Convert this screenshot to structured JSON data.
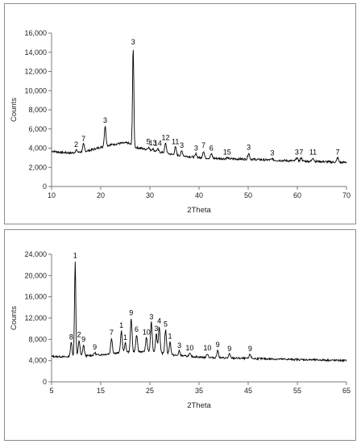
{
  "chart_data": [
    {
      "type": "line",
      "xlabel": "2Theta",
      "ylabel": "Counts",
      "xlim": [
        10,
        70
      ],
      "ylim": [
        0,
        16000
      ],
      "xticks": [
        "10",
        "20",
        "30",
        "40",
        "50",
        "60",
        "70"
      ],
      "yticks": [
        "0",
        "2,000",
        "4,000",
        "6,000",
        "8,000",
        "10,000",
        "12,000",
        "14,000",
        "16,000"
      ],
      "baseline": [
        [
          10,
          3700
        ],
        [
          12,
          3550
        ],
        [
          14,
          3500
        ],
        [
          16,
          3600
        ],
        [
          18,
          3800
        ],
        [
          20,
          4100
        ],
        [
          22,
          4350
        ],
        [
          24,
          4500
        ],
        [
          25.5,
          4550
        ],
        [
          27,
          4100
        ],
        [
          29,
          3900
        ],
        [
          32,
          3600
        ],
        [
          35,
          3300
        ],
        [
          40,
          3000
        ],
        [
          45,
          2900
        ],
        [
          50,
          2850
        ],
        [
          55,
          2750
        ],
        [
          60,
          2650
        ],
        [
          65,
          2600
        ],
        [
          69,
          2500
        ],
        [
          70,
          2550
        ]
      ],
      "peaks": [
        {
          "x": 15.0,
          "y": 3800,
          "label": "2"
        },
        {
          "x": 16.5,
          "y": 4400,
          "label": "7"
        },
        {
          "x": 20.9,
          "y": 6300,
          "label": "3"
        },
        {
          "x": 26.6,
          "y": 14500,
          "label": "3"
        },
        {
          "x": 29.7,
          "y": 4100,
          "label": "5"
        },
        {
          "x": 30.6,
          "y": 3950,
          "label": "13"
        },
        {
          "x": 31.6,
          "y": 3900,
          "label": "14"
        },
        {
          "x": 33.2,
          "y": 4500,
          "label": "12"
        },
        {
          "x": 35.2,
          "y": 4100,
          "label": "11"
        },
        {
          "x": 36.5,
          "y": 3700,
          "label": "3"
        },
        {
          "x": 39.4,
          "y": 3400,
          "label": "3"
        },
        {
          "x": 40.9,
          "y": 3700,
          "label": "7"
        },
        {
          "x": 42.5,
          "y": 3400,
          "label": "6"
        },
        {
          "x": 45.7,
          "y": 3000,
          "label": "15"
        },
        {
          "x": 50.1,
          "y": 3500,
          "label": "3"
        },
        {
          "x": 54.9,
          "y": 2900,
          "label": "3"
        },
        {
          "x": 59.9,
          "y": 3000,
          "label": "3"
        },
        {
          "x": 60.8,
          "y": 3000,
          "label": "7"
        },
        {
          "x": 63.2,
          "y": 3000,
          "label": "11"
        },
        {
          "x": 68.2,
          "y": 3000,
          "label": "7"
        }
      ]
    },
    {
      "type": "line",
      "xlabel": "2Theta",
      "ylabel": "Counts",
      "xlim": [
        5,
        65
      ],
      "ylim": [
        0,
        24000
      ],
      "xticks": [
        "5",
        "15",
        "25",
        "35",
        "45",
        "55",
        "65"
      ],
      "yticks": [
        "0",
        "4,000",
        "8,000",
        "12,000",
        "16,000",
        "20,000",
        "24,000"
      ],
      "baseline": [
        [
          5,
          4800
        ],
        [
          8,
          4700
        ],
        [
          10,
          4800
        ],
        [
          12,
          4900
        ],
        [
          15,
          5100
        ],
        [
          18,
          5400
        ],
        [
          21,
          5600
        ],
        [
          23,
          5700
        ],
        [
          26,
          5600
        ],
        [
          28,
          5300
        ],
        [
          30,
          5000
        ],
        [
          33,
          4800
        ],
        [
          36,
          4600
        ],
        [
          40,
          4500
        ],
        [
          45,
          4400
        ],
        [
          50,
          4300
        ],
        [
          55,
          4200
        ],
        [
          60,
          4100
        ],
        [
          65,
          4000
        ]
      ],
      "peaks": [
        {
          "x": 9.0,
          "y": 7400,
          "label": "8"
        },
        {
          "x": 9.8,
          "y": 22700,
          "label": "1"
        },
        {
          "x": 10.6,
          "y": 7800,
          "label": "2"
        },
        {
          "x": 11.5,
          "y": 6900,
          "label": "9"
        },
        {
          "x": 13.8,
          "y": 5500,
          "label": "9"
        },
        {
          "x": 17.2,
          "y": 8200,
          "label": "7"
        },
        {
          "x": 19.2,
          "y": 9600,
          "label": "1"
        },
        {
          "x": 20.0,
          "y": 7300,
          "label": "1"
        },
        {
          "x": 21.2,
          "y": 11900,
          "label": "9"
        },
        {
          "x": 22.3,
          "y": 8800,
          "label": "6"
        },
        {
          "x": 24.3,
          "y": 8300,
          "label": "10"
        },
        {
          "x": 25.3,
          "y": 11200,
          "label": "3"
        },
        {
          "x": 26.3,
          "y": 9000,
          "label": "3"
        },
        {
          "x": 26.9,
          "y": 10400,
          "label": "4"
        },
        {
          "x": 28.2,
          "y": 9800,
          "label": "5"
        },
        {
          "x": 29.1,
          "y": 7500,
          "label": "1"
        },
        {
          "x": 31.0,
          "y": 5800,
          "label": "3"
        },
        {
          "x": 33.1,
          "y": 5300,
          "label": "10"
        },
        {
          "x": 36.7,
          "y": 5300,
          "label": "10"
        },
        {
          "x": 38.8,
          "y": 5900,
          "label": "9"
        },
        {
          "x": 41.2,
          "y": 5200,
          "label": "9"
        },
        {
          "x": 45.4,
          "y": 5200,
          "label": "9"
        }
      ]
    }
  ]
}
